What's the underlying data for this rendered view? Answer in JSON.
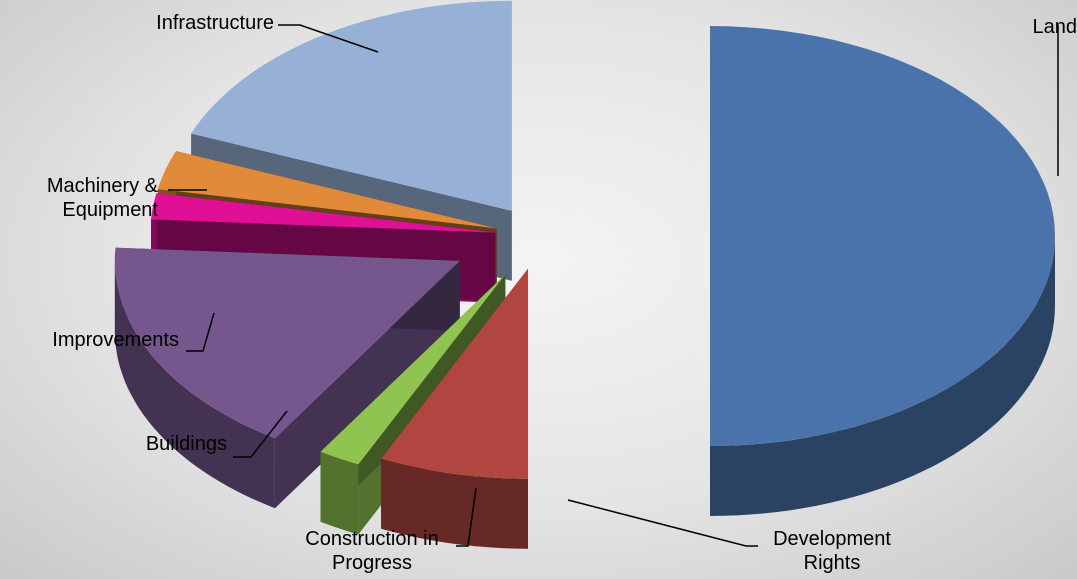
{
  "chart_data": {
    "type": "pie",
    "title": "",
    "exploded": true,
    "three_d": true,
    "start_angle_deg": 0,
    "direction": "clockwise",
    "slices": [
      {
        "name": "Land",
        "label_lines": [
          "Land"
        ],
        "value": 50,
        "color": "#4a73ab"
      },
      {
        "name": "Development Rights",
        "label_lines": [
          "Development",
          "Rights"
        ],
        "value": 7,
        "color": "#b0463f"
      },
      {
        "name": "Construction in Progress",
        "label_lines": [
          "Construction in",
          "Progress"
        ],
        "value": 2,
        "color": "#8ec44f"
      },
      {
        "name": "Buildings",
        "label_lines": [
          "Buildings"
        ],
        "value": 17,
        "color": "#75578e"
      },
      {
        "name": "Improvements",
        "label_lines": [
          "Improvements"
        ],
        "value": 2,
        "color": "#e01096"
      },
      {
        "name": "Machinery & Equipment",
        "label_lines": [
          "Machinery &",
          "Equipment"
        ],
        "value": 3,
        "color": "#e08a3a"
      },
      {
        "name": "Infrastructure",
        "label_lines": [
          "Infrastructure"
        ],
        "value": 19,
        "color": "#97b0d6"
      }
    ]
  }
}
